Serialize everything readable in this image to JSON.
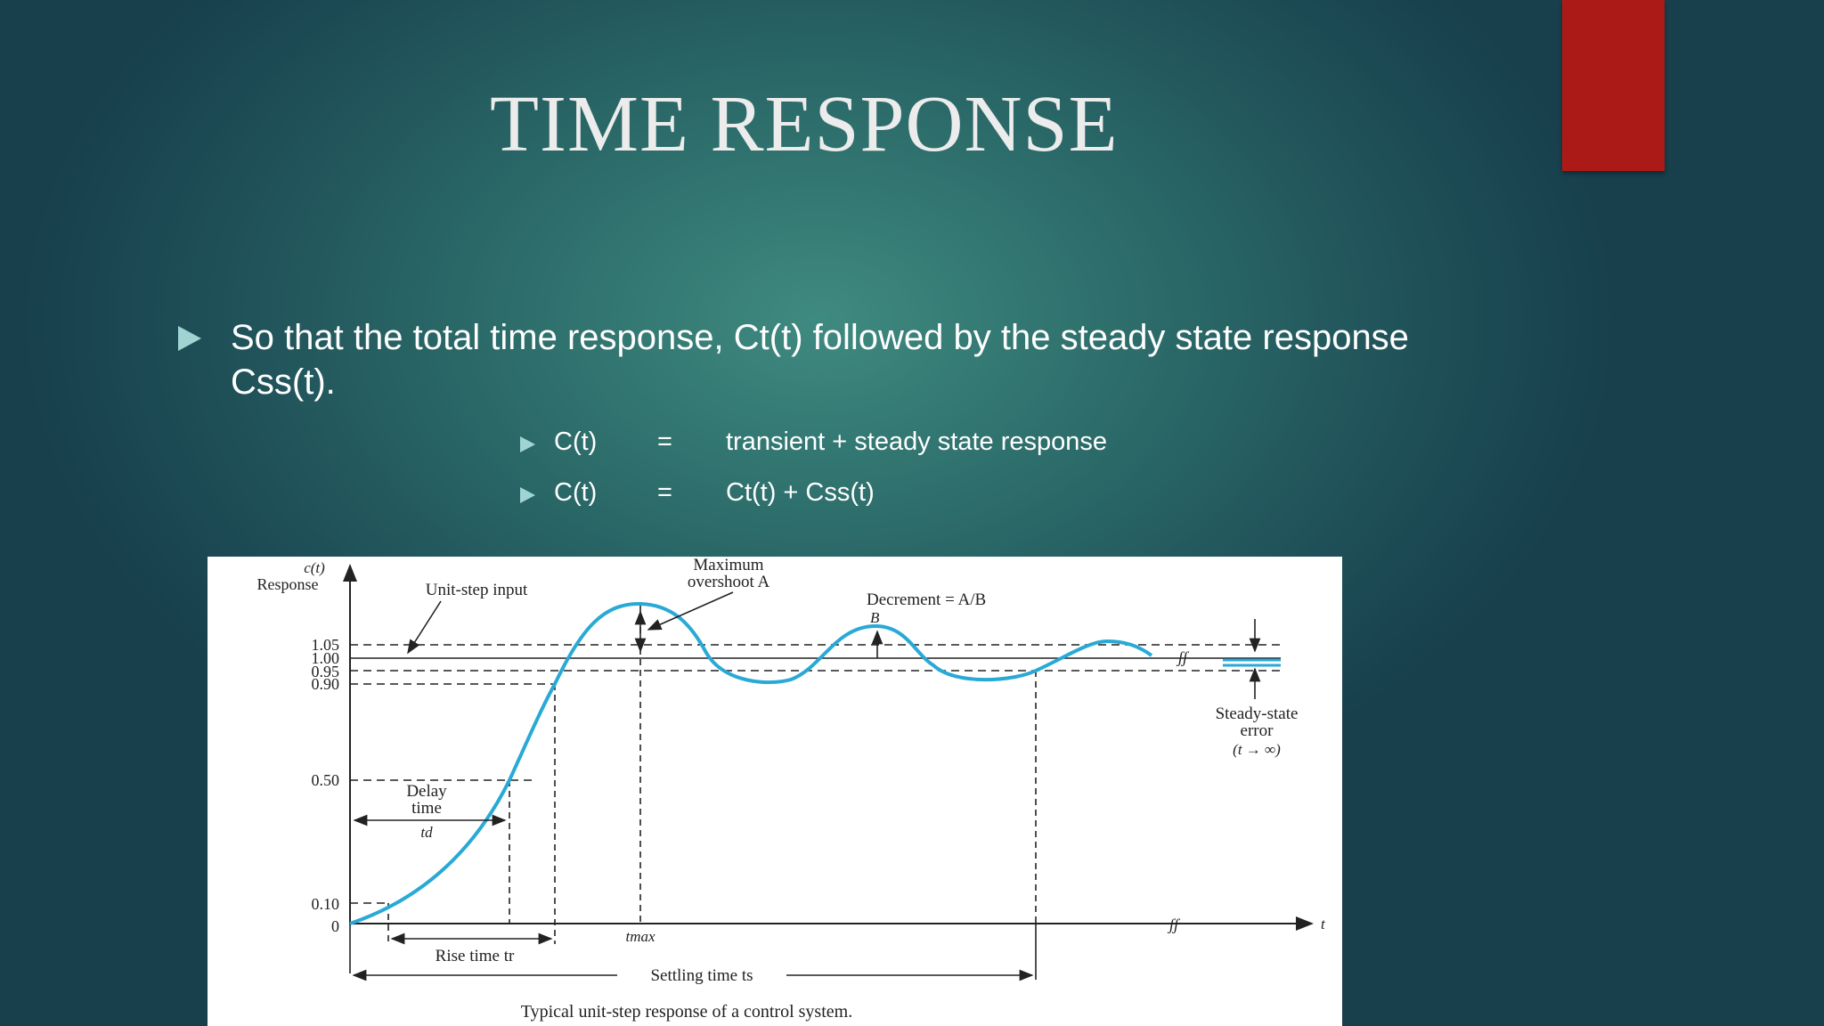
{
  "slide": {
    "title": "TIME RESPONSE",
    "bullet": "So that the total time response, Ct(t) followed by the steady state response Css(t).",
    "equations": [
      {
        "lhs": "C(t)",
        "eq": "=",
        "rhs": "transient + steady state response"
      },
      {
        "lhs": "C(t)",
        "eq": "=",
        "rhs": "Ct(t) + Css(t)"
      }
    ]
  },
  "figure": {
    "y_label_top": "c(t)",
    "y_label": "Response",
    "y_ticks": [
      "1.05",
      "1.00",
      "0.95",
      "0.90",
      "0.50",
      "0.10",
      "0"
    ],
    "x_axis_label": "t",
    "unit_step_label": "Unit-step input",
    "overshoot_label_1": "Maximum",
    "overshoot_label_2": "overshoot A",
    "decrement_label": "Decrement = A/B",
    "b_label": "B",
    "delay_label_1": "Delay",
    "delay_label_2": "time",
    "delay_symbol": "td",
    "tmax_label": "tmax",
    "rise_time_label": "Rise time tr",
    "settling_time_label": "Settling time ts",
    "steady_state_label_1": "Steady-state",
    "steady_state_label_2": "error",
    "steady_state_label_3": "(t → ∞)",
    "break_symbol": "ʃʃ",
    "caption": "Typical unit-step response of a control system."
  },
  "colors": {
    "accent_red": "#ab1a17",
    "bullet_arrow": "#9fd4d3",
    "curve": "#29a9d6"
  }
}
